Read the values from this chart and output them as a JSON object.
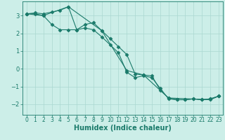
{
  "title": "",
  "xlabel": "Humidex (Indice chaleur)",
  "ylabel": "",
  "bg_color": "#cceee8",
  "grid_color": "#aad8d0",
  "line_color": "#1a7a6a",
  "xlim": [
    -0.5,
    23.5
  ],
  "ylim": [
    -2.6,
    3.8
  ],
  "xticks": [
    0,
    1,
    2,
    3,
    4,
    5,
    6,
    7,
    8,
    9,
    10,
    11,
    12,
    13,
    14,
    15,
    16,
    17,
    18,
    19,
    20,
    21,
    22,
    23
  ],
  "yticks": [
    -2,
    -1,
    0,
    1,
    2,
    3
  ],
  "lines": [
    {
      "x": [
        0,
        1,
        2,
        3,
        4,
        5,
        6,
        7,
        8,
        9,
        10,
        11,
        12,
        13,
        14,
        15,
        16,
        17,
        18,
        19,
        20,
        21,
        22,
        23
      ],
      "y": [
        3.1,
        3.15,
        3.1,
        3.2,
        3.3,
        3.5,
        2.2,
        2.5,
        2.6,
        2.15,
        1.7,
        1.25,
        0.8,
        -0.3,
        -0.35,
        -0.4,
        -1.2,
        -1.65,
        -1.75,
        -1.75,
        -1.7,
        -1.75,
        -1.7,
        -1.55
      ]
    },
    {
      "x": [
        0,
        1,
        2,
        3,
        4,
        5,
        6,
        7,
        8,
        9,
        10,
        11,
        12,
        13,
        14,
        15,
        16,
        17,
        18,
        19,
        20,
        21,
        22,
        23
      ],
      "y": [
        3.1,
        3.1,
        3.0,
        2.5,
        2.2,
        2.2,
        2.2,
        2.3,
        2.2,
        1.8,
        1.35,
        0.9,
        -0.2,
        -0.5,
        -0.4,
        -0.5,
        -1.1,
        -1.7,
        -1.75,
        -1.75,
        -1.7,
        -1.75,
        -1.7,
        -1.55
      ]
    },
    {
      "x": [
        0,
        2,
        5,
        9,
        12,
        14,
        17,
        22,
        23
      ],
      "y": [
        3.1,
        3.0,
        3.5,
        2.15,
        -0.1,
        -0.35,
        -1.65,
        -1.75,
        -1.55
      ]
    }
  ],
  "marker": "D",
  "markersize": 2.5,
  "linewidth": 0.8,
  "font_size_xlabel": 7,
  "font_size_ticks": 5.5
}
